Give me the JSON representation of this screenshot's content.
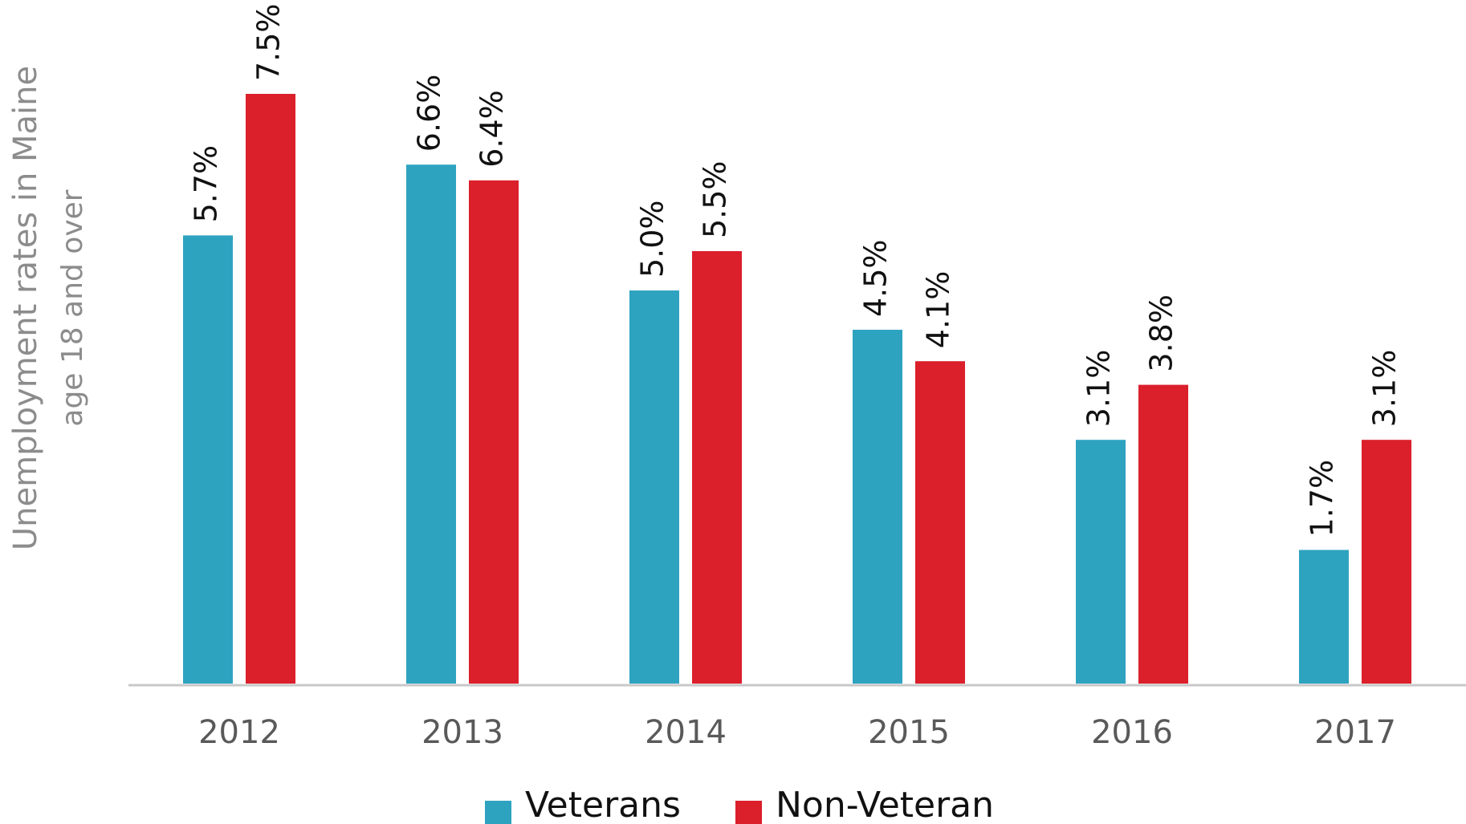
{
  "chart_data": {
    "type": "bar",
    "y_label": [
      "Unemployment rates in Maine",
      "age 18 and over"
    ],
    "categories": [
      "2012",
      "2013",
      "2014",
      "2015",
      "2016",
      "2017"
    ],
    "series": [
      {
        "name": "Veterans",
        "color": "#2ea3c0",
        "values": [
          5.7,
          6.6,
          5.0,
          4.5,
          3.1,
          1.7
        ],
        "value_labels": [
          "5.7%",
          "6.6%",
          "5.0%",
          "4.5%",
          "3.1%",
          "1.7%"
        ]
      },
      {
        "name": "Non-Veteran",
        "color": "#db1f2b",
        "values": [
          7.5,
          6.4,
          5.5,
          4.1,
          3.8,
          3.1
        ],
        "value_labels": [
          "7.5%",
          "6.4%",
          "5.5%",
          "4.1%",
          "3.8%",
          "3.1%"
        ]
      }
    ],
    "legend": "bottom"
  }
}
